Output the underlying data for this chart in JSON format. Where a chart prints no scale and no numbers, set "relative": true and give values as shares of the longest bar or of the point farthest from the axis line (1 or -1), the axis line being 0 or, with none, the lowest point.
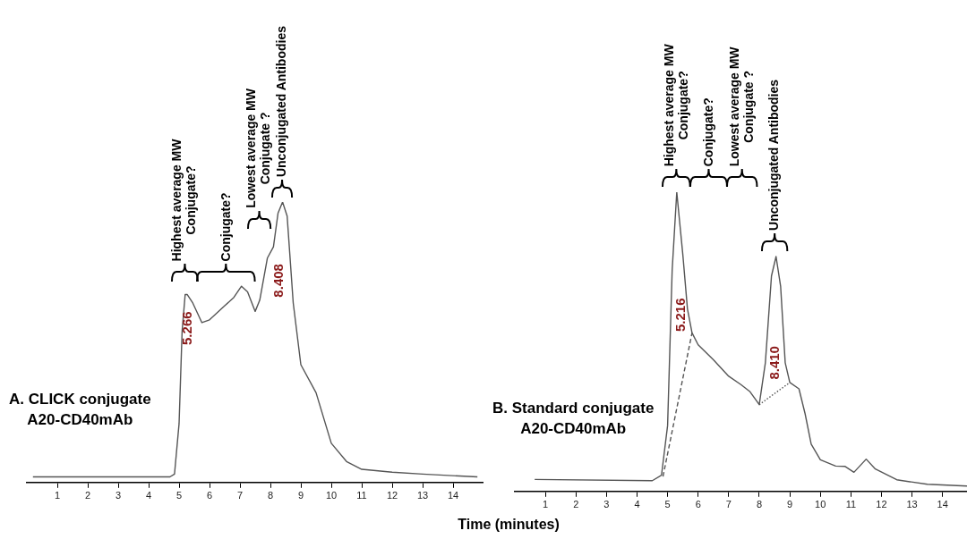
{
  "chart_data": [
    {
      "type": "line",
      "title": "A. CLICK conjugate\nA20-CD40mAb",
      "xlabel": "Time (minutes)",
      "relative": true,
      "marker": "none",
      "grid": false,
      "xlim": [
        0,
        15
      ],
      "xticks": [
        1,
        2,
        3,
        4,
        5,
        6,
        7,
        8,
        9,
        10,
        11,
        12,
        13,
        14
      ],
      "series": [
        {
          "color": "#555555",
          "line_style": "solid",
          "x": [
            0.2,
            4.7,
            4.85,
            5.0,
            5.1,
            5.2,
            5.27,
            5.45,
            5.75,
            6.0,
            6.5,
            6.8,
            7.05,
            7.25,
            7.5,
            7.65,
            7.9,
            8.1,
            8.25,
            8.4,
            8.55,
            8.75,
            9.0,
            9.5,
            10.0,
            10.5,
            11.0,
            12.0,
            13.0,
            14.8
          ],
          "values": [
            0.02,
            0.02,
            0.03,
            0.21,
            0.54,
            0.67,
            0.67,
            0.64,
            0.57,
            0.58,
            0.63,
            0.66,
            0.7,
            0.68,
            0.61,
            0.65,
            0.8,
            0.84,
            0.96,
            1,
            0.95,
            0.64,
            0.42,
            0.32,
            0.14,
            0.075,
            0.047,
            0.037,
            0.03,
            0.02
          ]
        }
      ],
      "annotations": [
        "Highest average MW\nConjugate?",
        "Conjugate?",
        "Lowest average MW\nConjugate ?",
        "Unconjugated Antibodies",
        "5.266",
        "8.408"
      ]
    },
    {
      "type": "line",
      "title": "B. Standard conjugate\nA20-CD40mAb",
      "relative": true,
      "marker": "none",
      "grid": false,
      "xlim": [
        0,
        14.8
      ],
      "xticks": [
        1,
        2,
        3,
        4,
        5,
        6,
        7,
        8,
        9,
        10,
        11,
        12,
        13,
        14
      ],
      "series": [
        {
          "color": "#555555",
          "line_style": "solid",
          "x": [
            0.65,
            4.5,
            4.8,
            5.0,
            5.15,
            5.3,
            5.5,
            5.65,
            5.8,
            6.0,
            6.5,
            7.0,
            7.4,
            7.7,
            8.0,
            8.2,
            8.4,
            8.55,
            8.7,
            8.85,
            9.0,
            9.3,
            9.5,
            9.7,
            10.0,
            10.5,
            10.8,
            11.1,
            11.5,
            11.8,
            12.5,
            13.5,
            14.8
          ],
          "values": [
            0.04,
            0.036,
            0.054,
            0.22,
            0.74,
            1,
            0.79,
            0.61,
            0.53,
            0.49,
            0.44,
            0.385,
            0.357,
            0.333,
            0.29,
            0.43,
            0.72,
            0.785,
            0.685,
            0.43,
            0.364,
            0.343,
            0.26,
            0.158,
            0.106,
            0.085,
            0.084,
            0.064,
            0.108,
            0.075,
            0.039,
            0.024,
            0.018
          ]
        },
        {
          "color": "#555555",
          "line_style": "dashed",
          "x": [
            4.85,
            5.8
          ],
          "values": [
            0.05,
            0.53
          ]
        },
        {
          "color": "#555555",
          "line_style": "dotted",
          "x": [
            8.0,
            9.0
          ],
          "values": [
            0.29,
            0.364
          ]
        }
      ],
      "annotations": [
        "Highest average MW\nConjugate?",
        "Conjugate?",
        "Lowest average MW\nConjugate ?",
        "Unconjugated Antibodies",
        "5.216",
        "8.410"
      ]
    }
  ]
}
